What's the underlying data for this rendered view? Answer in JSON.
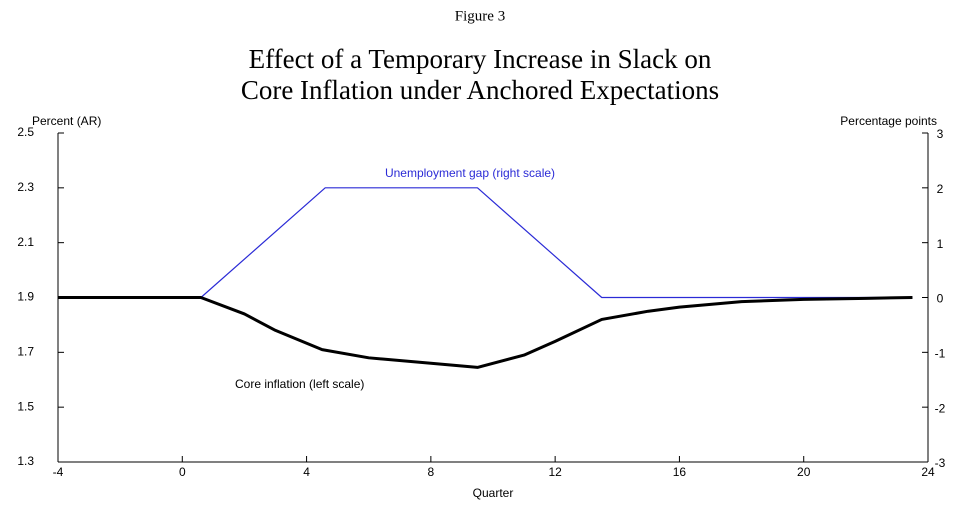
{
  "chart_data": {
    "type": "line",
    "figure_label": "Figure 3",
    "title": [
      "Effect of a Temporary Increase in Slack on",
      "Core Inflation under Anchored Expectations"
    ],
    "y_label": "Percent (AR)",
    "y2_label": "Percentage points",
    "x_label": "Quarter",
    "xlim": [
      -4,
      24
    ],
    "xticks": [
      -4,
      0,
      4,
      8,
      12,
      16,
      20,
      24
    ],
    "ylim": [
      1.3,
      2.5
    ],
    "yticks": [
      1.3,
      1.5,
      1.7,
      1.9,
      2.1,
      2.3,
      2.5
    ],
    "y2lim": [
      -3,
      3
    ],
    "y2ticks": [
      -3,
      -2,
      -1,
      0,
      1,
      2,
      3
    ],
    "grid": false,
    "series": [
      {
        "name": "Unemployment gap (right scale)",
        "color": "#2b2bd6",
        "axis": "y2",
        "x": [
          -4,
          0.6,
          4.6,
          9.5,
          13.5,
          23.5
        ],
        "values": [
          0,
          0,
          2,
          2,
          0,
          0
        ]
      },
      {
        "name": "Core inflation (left scale)",
        "color": "#000000",
        "x": [
          -4,
          0.6,
          2,
          3,
          4.5,
          6,
          8,
          9.5,
          11,
          12,
          13.5,
          15,
          16,
          18,
          20,
          22,
          23.5
        ],
        "values": [
          1.9,
          1.9,
          1.84,
          1.78,
          1.71,
          1.68,
          1.66,
          1.645,
          1.69,
          1.74,
          1.82,
          1.85,
          1.865,
          1.885,
          1.893,
          1.897,
          1.9
        ]
      }
    ]
  }
}
